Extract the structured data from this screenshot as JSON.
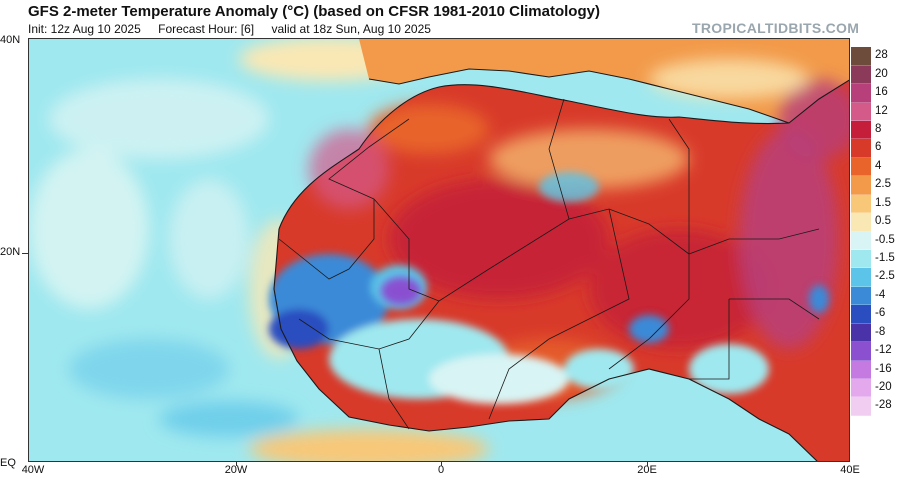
{
  "header": {
    "title": "GFS 2-meter Temperature Anomaly (°C) (based on CFSR 1981-2010 Climatology)",
    "init": "Init: 12z Aug 10 2025",
    "forecast_hour": "Forecast Hour: [6]",
    "valid": "valid at 18z Sun, Aug 10 2025",
    "brand": "TROPICALTIDBITS.COM"
  },
  "axes": {
    "lat_labels": [
      "40N",
      "20N",
      "EQ"
    ],
    "lon_labels": [
      "40W",
      "20W",
      "0",
      "20E",
      "40E"
    ]
  },
  "legend": {
    "labels": [
      "28",
      "20",
      "16",
      "12",
      "8",
      "6",
      "4",
      "2.5",
      "1.5",
      "0.5",
      "-0.5",
      "-1.5",
      "-2.5",
      "-4",
      "-6",
      "-8",
      "-12",
      "-16",
      "-20",
      "-28"
    ],
    "colors": [
      "#6e4c3c",
      "#8c3a5a",
      "#b8407a",
      "#d45a8a",
      "#c41e3a",
      "#d83a2a",
      "#e8642a",
      "#f29a4a",
      "#f8c878",
      "#fae8b4",
      "#d8f4f4",
      "#9fe8ef",
      "#5cc4e8",
      "#3a8ad8",
      "#2a4ec0",
      "#4a32a8",
      "#8a50d0",
      "#c47ae0",
      "#e4a8ec",
      "#f2cdf2"
    ]
  },
  "map": {
    "ocean_color": "#9fe8ef",
    "hot_color": "#d83a2a",
    "very_hot_color": "#c41e3a",
    "cold_color": "#2a4ec0",
    "purple_anomaly_color": "#8a50d0",
    "border_color": "#1a1a1a"
  }
}
